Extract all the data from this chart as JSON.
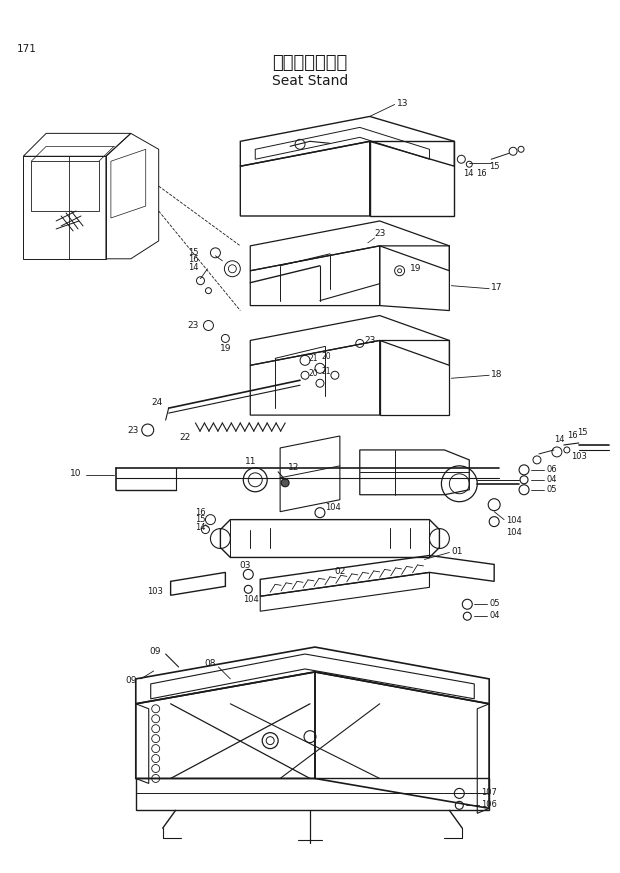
{
  "title_japanese": "シートスタンド",
  "title_english": "Seat Stand",
  "page_number": "171",
  "background_color": "#ffffff",
  "line_color": "#1a1a1a",
  "text_color": "#1a1a1a",
  "fig_width": 6.2,
  "fig_height": 8.73,
  "dpi": 100
}
